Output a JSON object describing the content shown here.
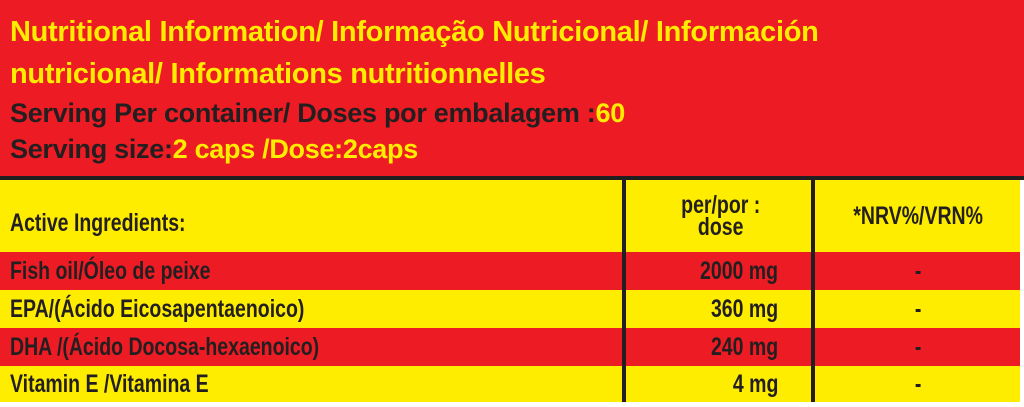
{
  "header": {
    "title_line1": "Nutritional Information/ Informação Nutricional/ Información",
    "title_line2": "nutricional/ Informations nutritionnelles",
    "servings_label": "Serving Per container/ Doses por embalagem :",
    "servings_value": "60",
    "serving_size_label": "Serving size:",
    "serving_size_value": "2 caps /Dose:2caps"
  },
  "table": {
    "columns": [
      "Active Ingredients:",
      "per/por :",
      "dose",
      "*NRV%/VRN%"
    ],
    "rows": [
      {
        "ingredient": "Fish oil/Óleo de peixe",
        "amount": "2000 mg",
        "nrv": "-"
      },
      {
        "ingredient": "EPA/(Ácido Eicosapentaenoico)",
        "amount": "360 mg",
        "nrv": "-"
      },
      {
        "ingredient": "DHA /(Ácido Docosa-hexaenoico)",
        "amount": "240 mg",
        "nrv": "-"
      },
      {
        "ingredient": "Vitamin E /Vitamina E",
        "amount": "4 mg",
        "nrv": "-"
      }
    ]
  },
  "colors": {
    "red": "#ed1c24",
    "yellow": "#ffed00",
    "text": "#231f20"
  }
}
